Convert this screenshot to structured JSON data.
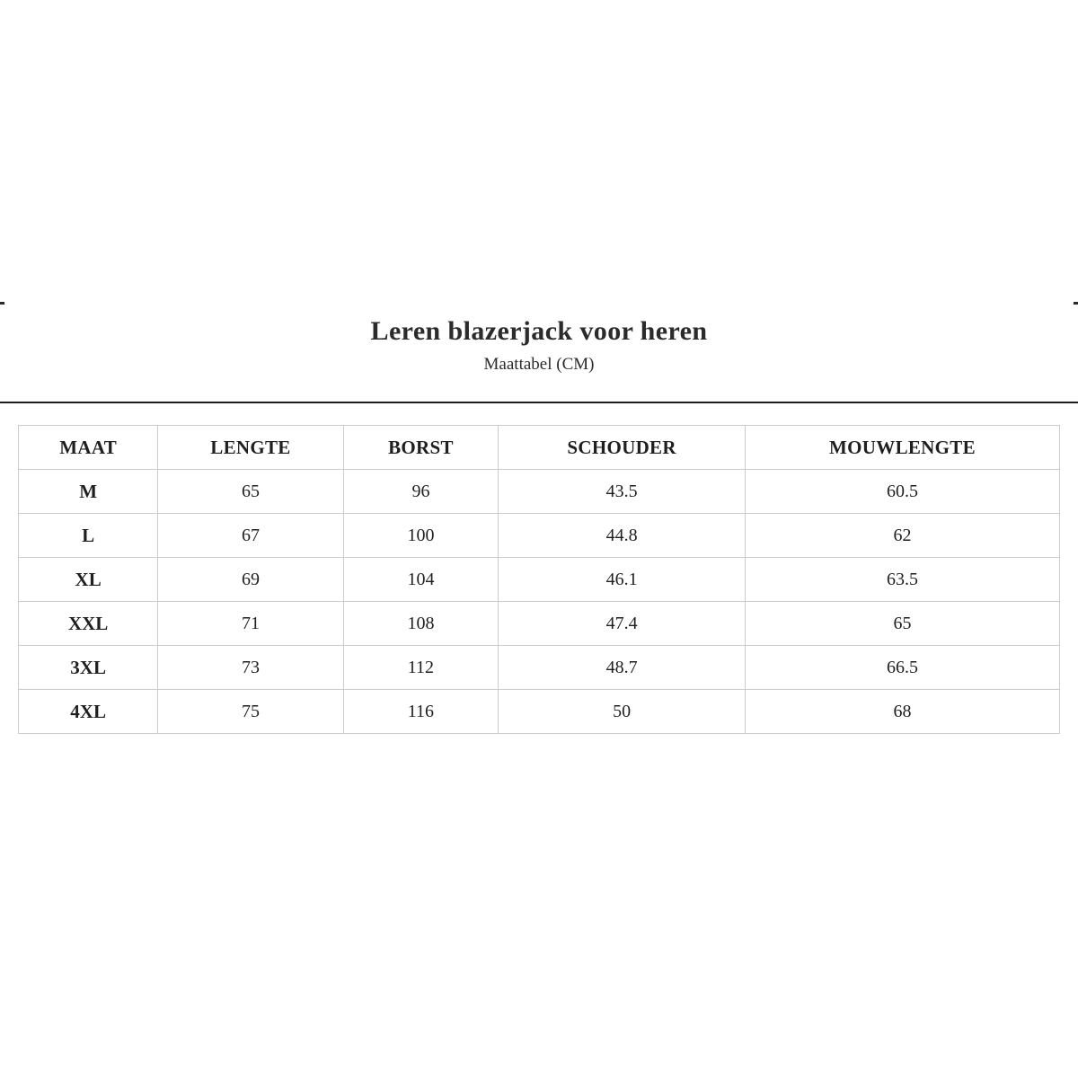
{
  "header": {
    "title": "Leren blazerjack voor heren",
    "subtitle": "Maattabel (CM)"
  },
  "table": {
    "columns": [
      "MAAT",
      "LENGTE",
      "BORST",
      "SCHOUDER",
      "MOUWLENGTE"
    ],
    "rows": [
      [
        "M",
        "65",
        "96",
        "43.5",
        "60.5"
      ],
      [
        "L",
        "67",
        "100",
        "44.8",
        "62"
      ],
      [
        "XL",
        "69",
        "104",
        "46.1",
        "63.5"
      ],
      [
        "XXL",
        "71",
        "108",
        "47.4",
        "65"
      ],
      [
        "3XL",
        "73",
        "112",
        "48.7",
        "66.5"
      ],
      [
        "4XL",
        "75",
        "116",
        "50",
        "68"
      ]
    ]
  },
  "colors": {
    "background": "#ffffff",
    "text": "#1f1f1f",
    "table_border": "#cccccc",
    "divider": "#1d1d1d"
  },
  "chart_data": {
    "type": "table",
    "title": "Leren blazerjack voor heren",
    "subtitle": "Maattabel (CM)",
    "columns": [
      "MAAT",
      "LENGTE",
      "BORST",
      "SCHOUDER",
      "MOUWLENGTE"
    ],
    "rows": [
      [
        "M",
        65,
        96,
        43.5,
        60.5
      ],
      [
        "L",
        67,
        100,
        44.8,
        62
      ],
      [
        "XL",
        69,
        104,
        46.1,
        63.5
      ],
      [
        "XXL",
        71,
        108,
        47.4,
        65
      ],
      [
        "3XL",
        73,
        112,
        48.7,
        66.5
      ],
      [
        "4XL",
        75,
        116,
        50,
        68
      ]
    ]
  }
}
